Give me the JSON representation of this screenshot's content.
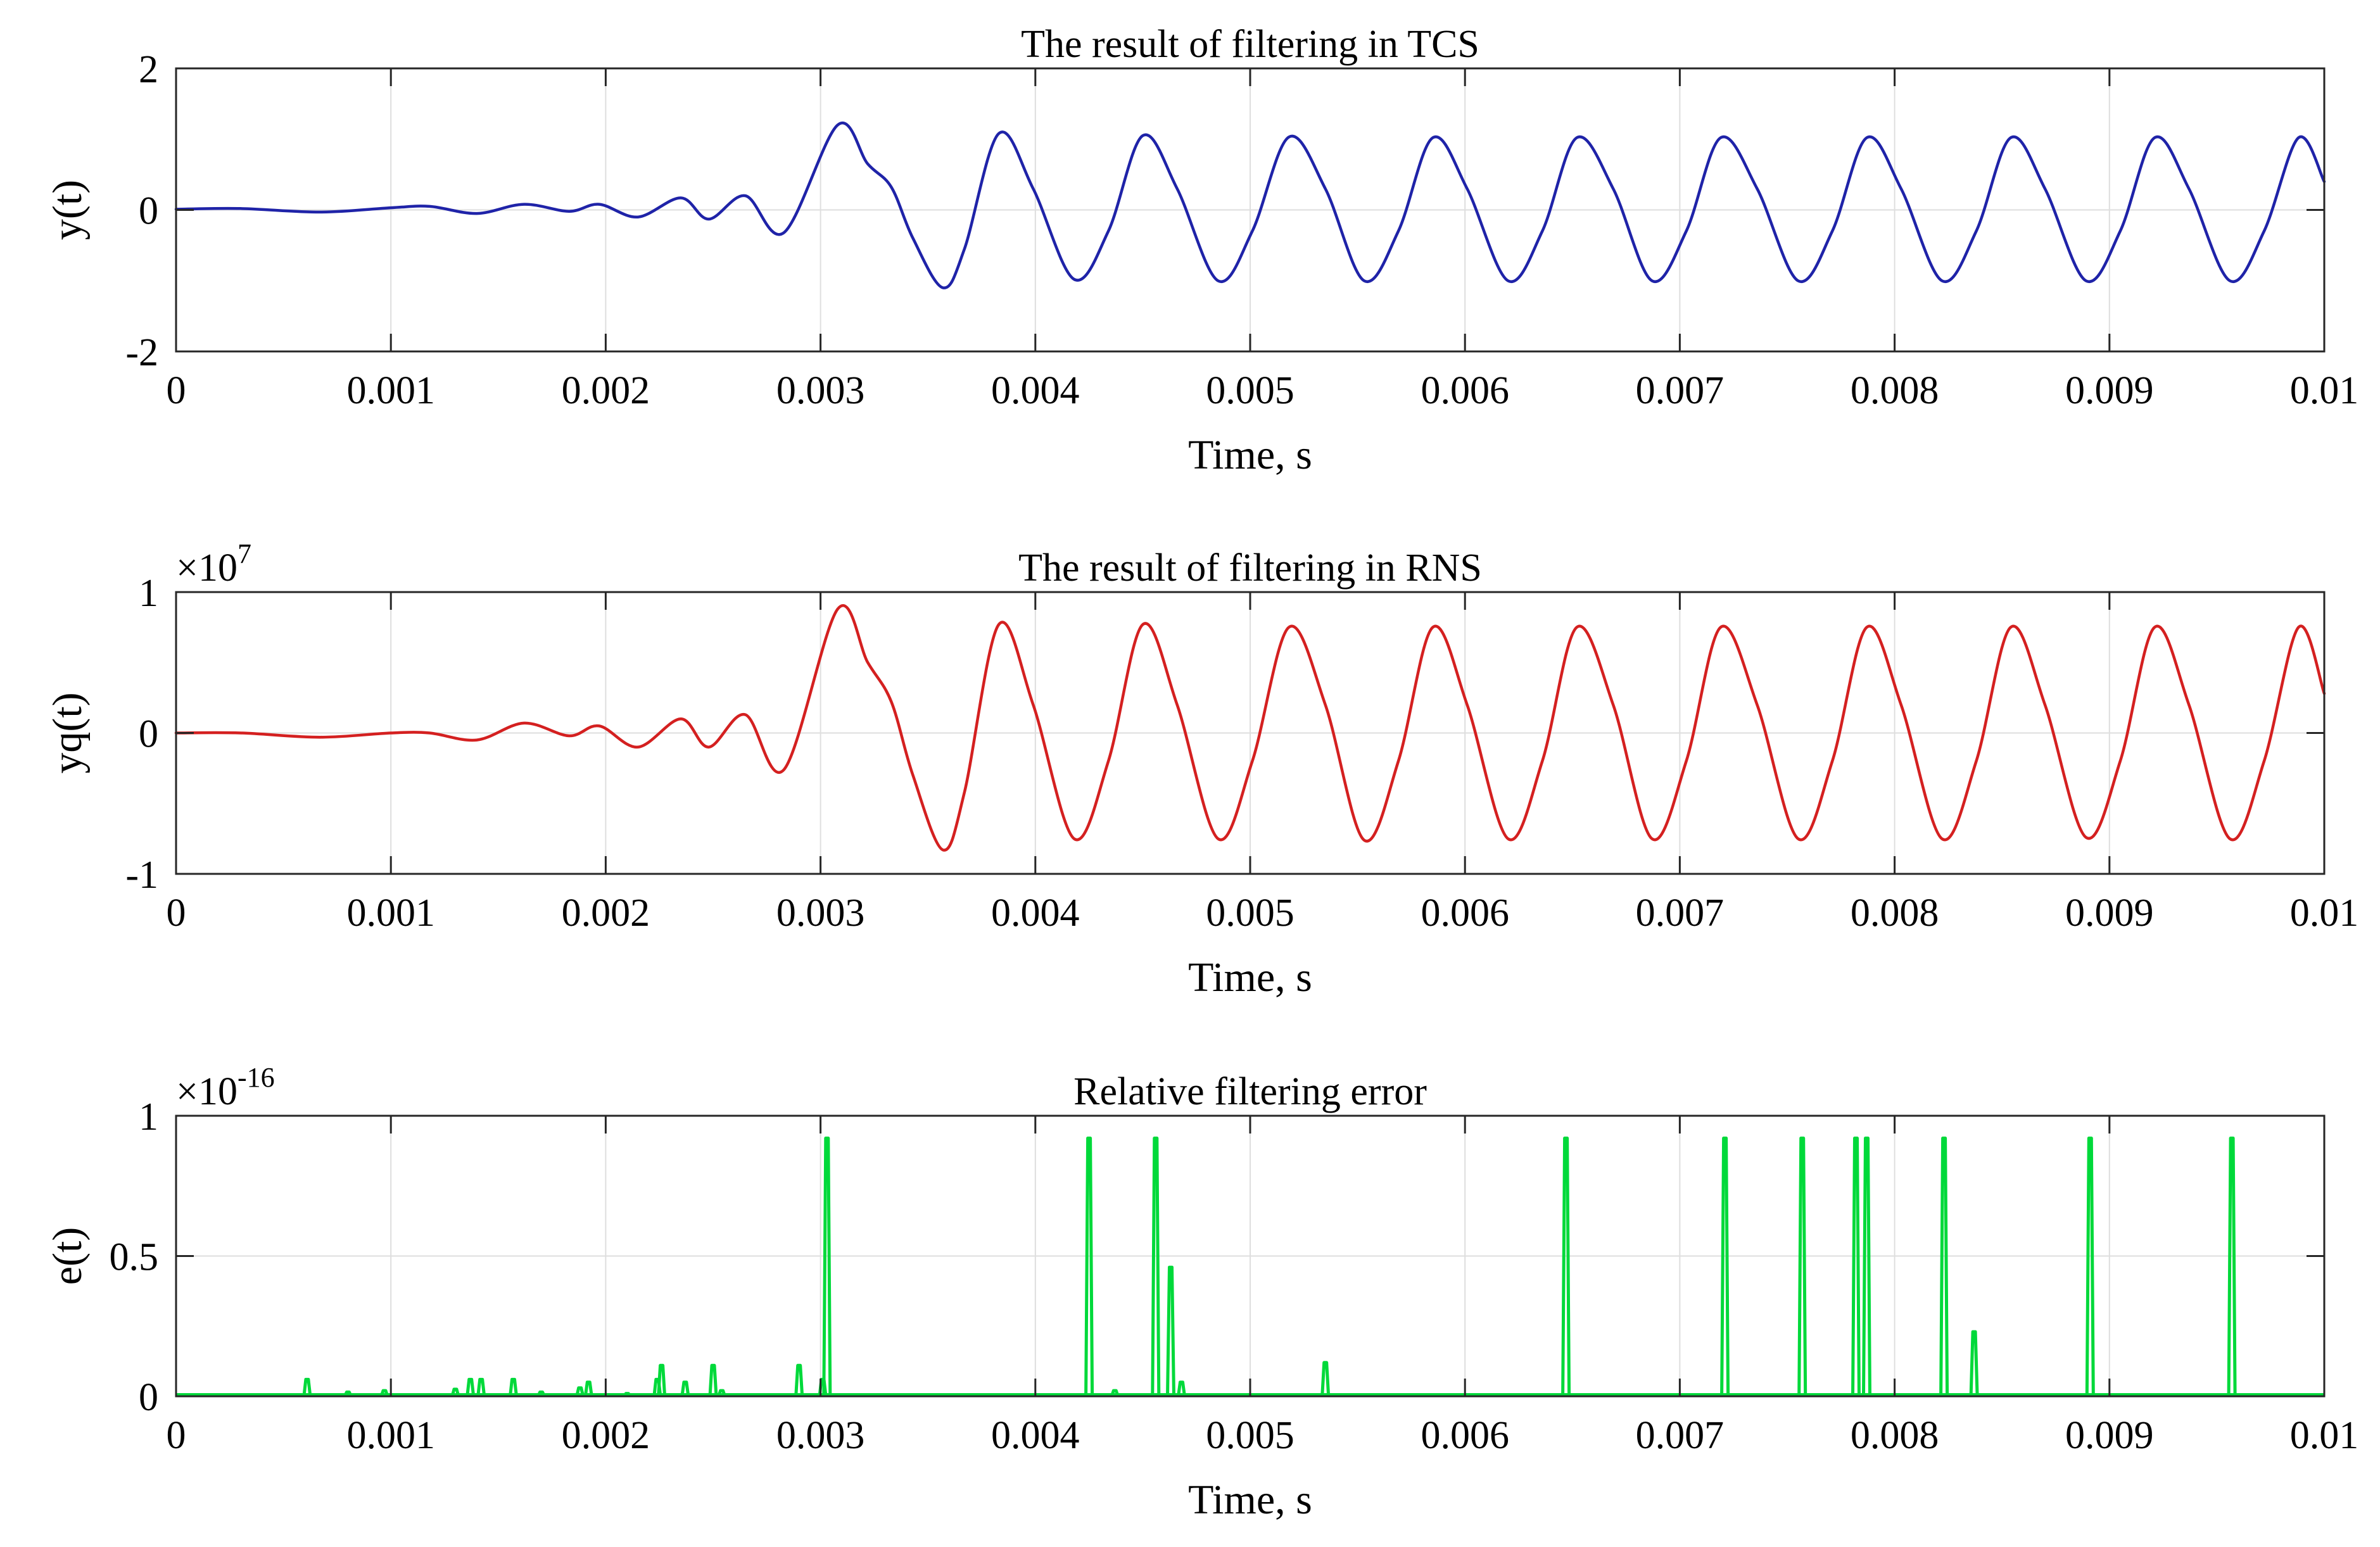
{
  "figure": {
    "background": "#ffffff",
    "axis_color": "#262626",
    "grid_color": "#dedede"
  },
  "chart_data": [
    {
      "type": "line",
      "title": "The result of filtering in TCS",
      "xlabel": "Time, s",
      "ylabel": "y(t)",
      "exponent": "",
      "xlim": [
        0,
        0.01
      ],
      "ylim": [
        -2,
        2
      ],
      "xticks": [
        0,
        0.001,
        0.002,
        0.003,
        0.004,
        0.005,
        0.006,
        0.007,
        0.008,
        0.009,
        0.01
      ],
      "xtick_labels": [
        "0",
        "0.001",
        "0.002",
        "0.003",
        "0.004",
        "0.005",
        "0.006",
        "0.007",
        "0.008",
        "0.009",
        "0.01"
      ],
      "yticks": [
        -2,
        0,
        2
      ],
      "ytick_labels": [
        "-2",
        "0",
        "2"
      ],
      "grid": true,
      "series": [
        {
          "name": "y(t)",
          "color": "#1f23a8",
          "x": [
            0,
            0.0003,
            0.00067,
            0.001,
            0.00118,
            0.0014,
            0.00162,
            0.00183,
            0.00197,
            0.00215,
            0.00235,
            0.00248,
            0.00265,
            0.00283,
            0.00308,
            0.00322,
            0.00333,
            0.00343,
            0.00357,
            0.00367,
            0.00383,
            0.00399,
            0.00418,
            0.00434,
            0.0045,
            0.00466,
            0.00485,
            0.00501,
            0.00518,
            0.00535,
            0.00553,
            0.00569,
            0.00585,
            0.00601,
            0.0062,
            0.00636,
            0.00652,
            0.00669,
            0.00687,
            0.00703,
            0.00719,
            0.00736,
            0.00755,
            0.00771,
            0.00787,
            0.00803,
            0.00822,
            0.00838,
            0.00854,
            0.0087,
            0.00889,
            0.00905,
            0.00921,
            0.00937,
            0.00956,
            0.00972,
            0.00988,
            0.01
          ],
          "values": [
            0.01,
            0.02,
            -0.03,
            0.03,
            0.05,
            -0.05,
            0.08,
            -0.02,
            0.08,
            -0.1,
            0.17,
            -0.13,
            0.2,
            -0.32,
            1.2,
            0.65,
            0.32,
            -0.4,
            -1.1,
            -0.55,
            1.08,
            0.3,
            -0.98,
            -0.3,
            1.05,
            0.3,
            -1.0,
            -0.3,
            1.03,
            0.3,
            -1.0,
            -0.3,
            1.02,
            0.3,
            -1.0,
            -0.3,
            1.02,
            0.3,
            -1.0,
            -0.3,
            1.02,
            0.3,
            -1.0,
            -0.3,
            1.02,
            0.3,
            -1.0,
            -0.3,
            1.02,
            0.3,
            -1.0,
            -0.3,
            1.02,
            0.3,
            -1.0,
            -0.3,
            1.02,
            0.4
          ]
        }
      ]
    },
    {
      "type": "line",
      "title": "The result of filtering in RNS",
      "xlabel": "Time, s",
      "ylabel": "yq(t)",
      "exponent": "7",
      "xlim": [
        0,
        0.01
      ],
      "ylim": [
        -1,
        1
      ],
      "xticks": [
        0,
        0.001,
        0.002,
        0.003,
        0.004,
        0.005,
        0.006,
        0.007,
        0.008,
        0.009,
        0.01
      ],
      "xtick_labels": [
        "0",
        "0.001",
        "0.002",
        "0.003",
        "0.004",
        "0.005",
        "0.006",
        "0.007",
        "0.008",
        "0.009",
        "0.01"
      ],
      "yticks": [
        -1,
        0,
        1
      ],
      "ytick_labels": [
        "-1",
        "0",
        "1"
      ],
      "grid": true,
      "series": [
        {
          "name": "yq(t)",
          "color": "#d42020",
          "x": [
            0,
            0.0003,
            0.00067,
            0.001,
            0.00118,
            0.0014,
            0.00162,
            0.00183,
            0.00197,
            0.00215,
            0.00235,
            0.00248,
            0.00265,
            0.00283,
            0.00308,
            0.00322,
            0.00333,
            0.00343,
            0.00357,
            0.00367,
            0.00383,
            0.00399,
            0.00418,
            0.00434,
            0.0045,
            0.00466,
            0.00485,
            0.00501,
            0.00518,
            0.00535,
            0.00553,
            0.00569,
            0.00585,
            0.00601,
            0.0062,
            0.00636,
            0.00652,
            0.00669,
            0.00687,
            0.00703,
            0.00719,
            0.00736,
            0.00755,
            0.00771,
            0.00787,
            0.00803,
            0.00822,
            0.00838,
            0.00854,
            0.0087,
            0.00889,
            0.00905,
            0.00921,
            0.00937,
            0.00956,
            0.00972,
            0.00988,
            0.01
          ],
          "values": [
            0.0,
            0.0,
            -0.03,
            0.0,
            0.0,
            -0.05,
            0.07,
            -0.02,
            0.05,
            -0.1,
            0.1,
            -0.1,
            0.13,
            -0.26,
            0.88,
            0.5,
            0.22,
            -0.3,
            -0.83,
            -0.42,
            0.77,
            0.2,
            -0.75,
            -0.2,
            0.77,
            0.2,
            -0.75,
            -0.2,
            0.75,
            0.2,
            -0.76,
            -0.2,
            0.75,
            0.2,
            -0.75,
            -0.2,
            0.75,
            0.2,
            -0.75,
            -0.2,
            0.75,
            0.2,
            -0.75,
            -0.2,
            0.75,
            0.2,
            -0.75,
            -0.2,
            0.75,
            0.2,
            -0.74,
            -0.2,
            0.75,
            0.2,
            -0.75,
            -0.2,
            0.75,
            0.28
          ]
        }
      ]
    },
    {
      "type": "line",
      "title": "Relative filtering error",
      "xlabel": "Time, s",
      "ylabel": "e(t)",
      "exponent": "-16",
      "xlim": [
        0,
        0.01
      ],
      "ylim": [
        0,
        1
      ],
      "xticks": [
        0,
        0.001,
        0.002,
        0.003,
        0.004,
        0.005,
        0.006,
        0.007,
        0.008,
        0.009,
        0.01
      ],
      "xtick_labels": [
        "0",
        "0.001",
        "0.002",
        "0.003",
        "0.004",
        "0.005",
        "0.006",
        "0.007",
        "0.008",
        "0.009",
        "0.01"
      ],
      "yticks": [
        0,
        0.5,
        1
      ],
      "ytick_labels": [
        "0",
        "0.5",
        "1"
      ],
      "grid": true,
      "series": [
        {
          "name": "e(t)",
          "color": "#00d93a",
          "spikes": [
            {
              "x": 0.00061,
              "value": 0.06
            },
            {
              "x": 0.0008,
              "value": 0.015
            },
            {
              "x": 0.00097,
              "value": 0.02
            },
            {
              "x": 0.0013,
              "value": 0.025
            },
            {
              "x": 0.00137,
              "value": 0.06
            },
            {
              "x": 0.00142,
              "value": 0.06
            },
            {
              "x": 0.00157,
              "value": 0.06
            },
            {
              "x": 0.0017,
              "value": 0.015
            },
            {
              "x": 0.00188,
              "value": 0.03
            },
            {
              "x": 0.00192,
              "value": 0.05
            },
            {
              "x": 0.0021,
              "value": 0.01
            },
            {
              "x": 0.00224,
              "value": 0.06
            },
            {
              "x": 0.00226,
              "value": 0.11
            },
            {
              "x": 0.00237,
              "value": 0.05
            },
            {
              "x": 0.0025,
              "value": 0.11
            },
            {
              "x": 0.00254,
              "value": 0.02
            },
            {
              "x": 0.0029,
              "value": 0.11
            },
            {
              "x": 0.00301,
              "value": 0.06
            },
            {
              "x": 0.00303,
              "value": 0.92
            },
            {
              "x": 0.00425,
              "value": 0.92
            },
            {
              "x": 0.00437,
              "value": 0.02
            },
            {
              "x": 0.00456,
              "value": 0.92
            },
            {
              "x": 0.00463,
              "value": 0.46
            },
            {
              "x": 0.00468,
              "value": 0.05
            },
            {
              "x": 0.00535,
              "value": 0.12
            },
            {
              "x": 0.00647,
              "value": 0.92
            },
            {
              "x": 0.00721,
              "value": 0.92
            },
            {
              "x": 0.00757,
              "value": 0.92
            },
            {
              "x": 0.00782,
              "value": 0.92
            },
            {
              "x": 0.00787,
              "value": 0.92
            },
            {
              "x": 0.00823,
              "value": 0.92
            },
            {
              "x": 0.00837,
              "value": 0.23
            },
            {
              "x": 0.00891,
              "value": 0.92
            },
            {
              "x": 0.00957,
              "value": 0.92
            }
          ]
        }
      ]
    }
  ]
}
